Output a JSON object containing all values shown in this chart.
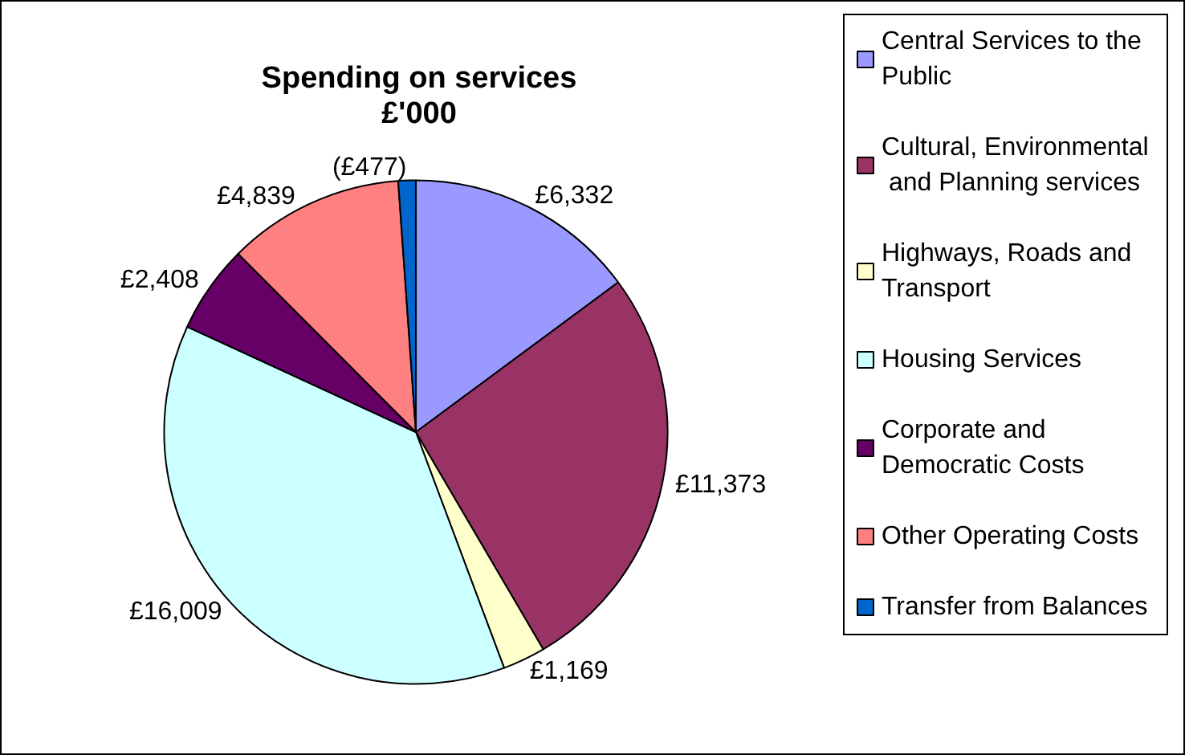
{
  "chart_data": {
    "type": "pie",
    "title": "Spending on services\n£'000",
    "categories": [
      "Central Services to the Public",
      "Cultural, Environmental and Planning services",
      "Highways, Roads and Transport",
      "Housing Services",
      "Corporate and Democratic Costs",
      "Other Operating Costs",
      "Transfer from Balances"
    ],
    "values": [
      6332,
      11373,
      1169,
      16009,
      2408,
      4839,
      477
    ],
    "value_labels": [
      "£6,332",
      "£11,373",
      "£1,169",
      "£16,009",
      "£2,408",
      "£4,839",
      "(£477)"
    ],
    "colors": [
      "#9999ff",
      "#993366",
      "#ffffcc",
      "#ccffff",
      "#660066",
      "#ff8080",
      "#0066cc"
    ],
    "legend": "right"
  }
}
